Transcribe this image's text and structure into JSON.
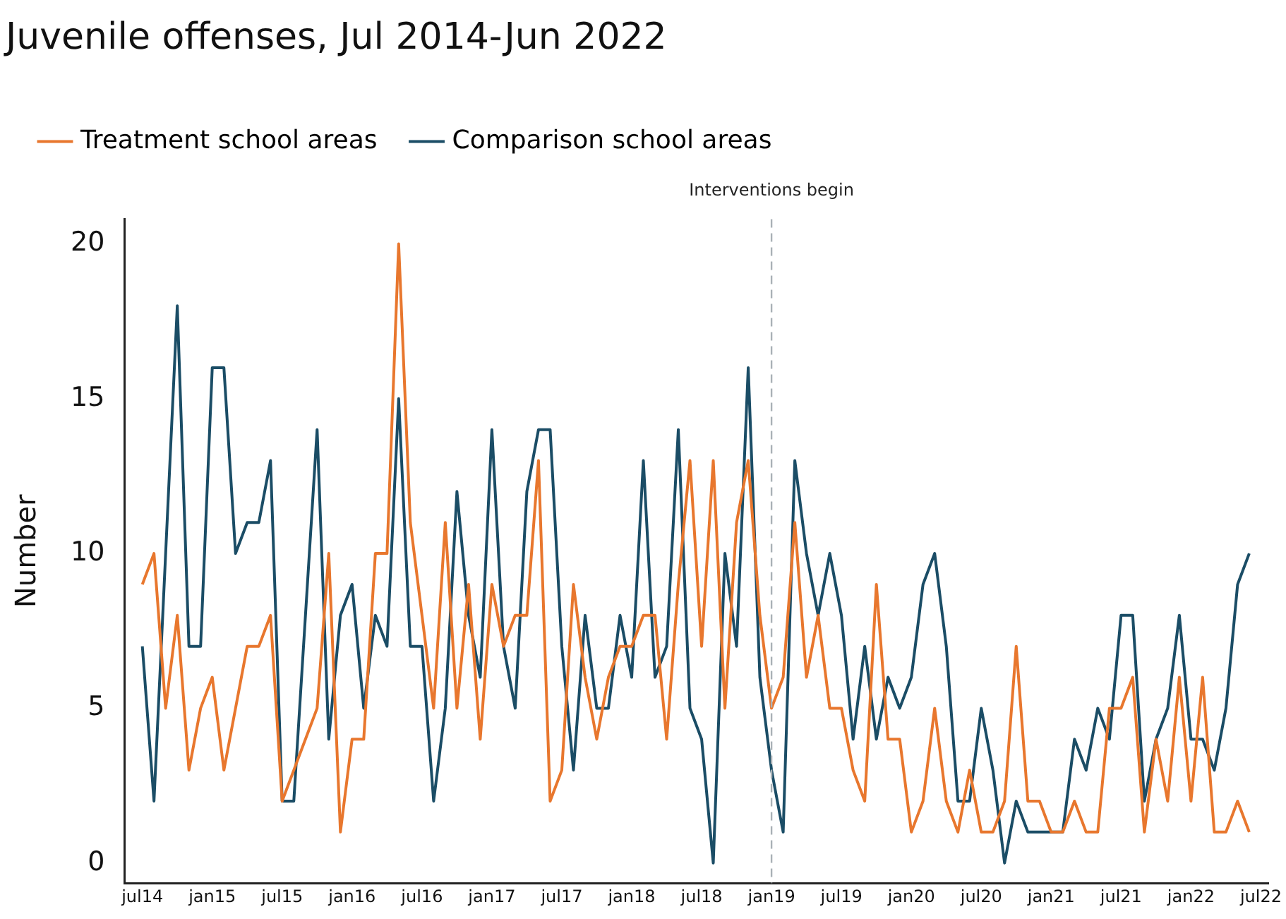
{
  "chart_data": {
    "type": "line",
    "title": "Juvenile offenses, Jul 2014-Jun 2022",
    "ylabel": "Number",
    "x": [
      "2014-07",
      "2014-08",
      "2014-09",
      "2014-10",
      "2014-11",
      "2014-12",
      "2015-01",
      "2015-02",
      "2015-03",
      "2015-04",
      "2015-05",
      "2015-06",
      "2015-07",
      "2015-08",
      "2015-09",
      "2015-10",
      "2015-11",
      "2015-12",
      "2016-01",
      "2016-02",
      "2016-03",
      "2016-04",
      "2016-05",
      "2016-06",
      "2016-07",
      "2016-08",
      "2016-09",
      "2016-10",
      "2016-11",
      "2016-12",
      "2017-01",
      "2017-02",
      "2017-03",
      "2017-04",
      "2017-05",
      "2017-06",
      "2017-07",
      "2017-08",
      "2017-09",
      "2017-10",
      "2017-11",
      "2017-12",
      "2018-01",
      "2018-02",
      "2018-03",
      "2018-04",
      "2018-05",
      "2018-06",
      "2018-07",
      "2018-08",
      "2018-09",
      "2018-10",
      "2018-11",
      "2018-12",
      "2019-01",
      "2019-02",
      "2019-03",
      "2019-04",
      "2019-05",
      "2019-06",
      "2019-07",
      "2019-08",
      "2019-09",
      "2019-10",
      "2019-11",
      "2019-12",
      "2020-01",
      "2020-02",
      "2020-03",
      "2020-04",
      "2020-05",
      "2020-06",
      "2020-07",
      "2020-08",
      "2020-09",
      "2020-10",
      "2020-11",
      "2020-12",
      "2021-01",
      "2021-02",
      "2021-03",
      "2021-04",
      "2021-05",
      "2021-06",
      "2021-07",
      "2021-08",
      "2021-09",
      "2021-10",
      "2021-11",
      "2021-12",
      "2022-01",
      "2022-02",
      "2022-03",
      "2022-04",
      "2022-05",
      "2022-06"
    ],
    "series": [
      {
        "name": "Treatment school areas",
        "color": "#e8772e",
        "values": [
          9,
          10,
          5,
          8,
          3,
          5,
          6,
          3,
          5,
          7,
          7,
          8,
          2,
          3,
          4,
          5,
          10,
          1,
          4,
          4,
          10,
          10,
          20,
          11,
          8,
          5,
          11,
          5,
          9,
          4,
          9,
          7,
          8,
          8,
          13,
          2,
          3,
          9,
          6,
          4,
          6,
          7,
          7,
          8,
          8,
          4,
          9,
          13,
          7,
          13,
          5,
          11,
          13,
          8,
          5,
          6,
          11,
          6,
          8,
          5,
          5,
          3,
          2,
          9,
          4,
          4,
          1,
          2,
          5,
          2,
          1,
          3,
          1,
          1,
          2,
          7,
          2,
          2,
          1,
          1,
          2,
          1,
          1,
          5,
          5,
          6,
          1,
          4,
          2,
          6,
          2,
          6,
          1,
          1,
          2,
          1
        ]
      },
      {
        "name": "Comparison school areas",
        "color": "#1b4d66",
        "values": [
          7,
          2,
          10,
          18,
          7,
          7,
          16,
          16,
          10,
          11,
          11,
          13,
          2,
          2,
          8,
          14,
          4,
          8,
          9,
          5,
          8,
          7,
          15,
          7,
          7,
          2,
          5,
          12,
          8,
          6,
          14,
          7,
          5,
          12,
          14,
          14,
          7,
          3,
          8,
          5,
          5,
          8,
          6,
          13,
          6,
          7,
          14,
          5,
          4,
          0,
          10,
          7,
          16,
          6,
          3,
          1,
          13,
          10,
          8,
          10,
          8,
          4,
          7,
          4,
          6,
          5,
          6,
          9,
          10,
          7,
          2,
          2,
          5,
          3,
          0,
          2,
          1,
          1,
          1,
          1,
          4,
          3,
          5,
          4,
          8,
          8,
          2,
          4,
          5,
          8,
          4,
          4,
          3,
          5,
          9,
          10
        ]
      }
    ],
    "xlim": [
      "2014-05-15",
      "2022-07-20"
    ],
    "xticks": [
      {
        "value": "2014-07",
        "label": "jul14"
      },
      {
        "value": "2015-01",
        "label": "jan15"
      },
      {
        "value": "2015-07",
        "label": "jul15"
      },
      {
        "value": "2016-01",
        "label": "jan16"
      },
      {
        "value": "2016-07",
        "label": "jul16"
      },
      {
        "value": "2017-01",
        "label": "jan17"
      },
      {
        "value": "2017-07",
        "label": "jul17"
      },
      {
        "value": "2018-01",
        "label": "jan18"
      },
      {
        "value": "2018-07",
        "label": "jul18"
      },
      {
        "value": "2019-01",
        "label": "jan19"
      },
      {
        "value": "2019-07",
        "label": "jul19"
      },
      {
        "value": "2020-01",
        "label": "jan20"
      },
      {
        "value": "2020-07",
        "label": "jul20"
      },
      {
        "value": "2021-01",
        "label": "jan21"
      },
      {
        "value": "2021-07",
        "label": "jul21"
      },
      {
        "value": "2022-01",
        "label": "jan22"
      },
      {
        "value": "2022-07",
        "label": "jul22"
      }
    ],
    "ylim": [
      -0.65,
      20.8
    ],
    "yticks": [
      0,
      5,
      10,
      15,
      20
    ],
    "ref_lines": [
      {
        "axis": "x",
        "value": "2019-01",
        "label": "Interventions begin",
        "color": "#a9b1b6",
        "line_style": "dashed"
      }
    ],
    "grid": false,
    "legend": "top left",
    "marker": "none",
    "line_style": "solid"
  }
}
